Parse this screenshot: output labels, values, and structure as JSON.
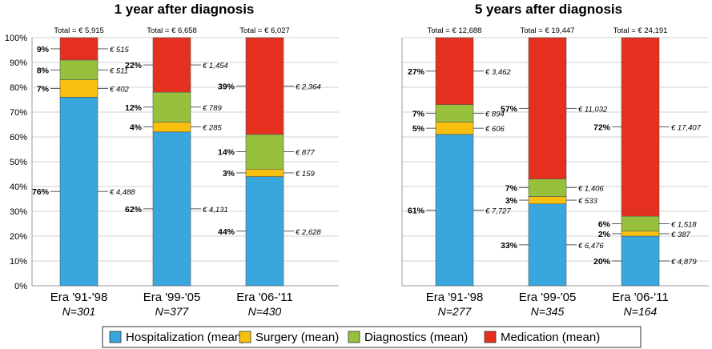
{
  "chart_data": [
    {
      "type": "bar",
      "stacked": true,
      "normalized": true,
      "title": "1 year after diagnosis",
      "categories": [
        "Era '91-'98",
        "Era '99-'05",
        "Era '06-'11"
      ],
      "n_labels": [
        "N=301",
        "N=377",
        "N=430"
      ],
      "totals": [
        "Total = € 5,915",
        "Total = € 6,658",
        "Total = € 6,027"
      ],
      "ylim": [
        0,
        100
      ],
      "yticks": [
        "0%",
        "10%",
        "20%",
        "30%",
        "40%",
        "50%",
        "60%",
        "70%",
        "80%",
        "90%",
        "100%"
      ],
      "grid": true,
      "series": [
        {
          "name": "Hospitalization (mean)",
          "values": [
            76,
            62,
            44
          ],
          "pct_labels": [
            "76%",
            "62%",
            "44%"
          ],
          "euro_labels": [
            "€ 4,488",
            "€ 4,131",
            "€ 2,628"
          ]
        },
        {
          "name": "Surgery (mean)",
          "values": [
            7,
            4,
            3
          ],
          "pct_labels": [
            "7%",
            "4%",
            "3%"
          ],
          "euro_labels": [
            "€ 402",
            "€ 285",
            "€ 159"
          ]
        },
        {
          "name": "Diagnostics (mean)",
          "values": [
            8,
            12,
            14
          ],
          "pct_labels": [
            "8%",
            "12%",
            "14%"
          ],
          "euro_labels": [
            "€ 511",
            "€ 789",
            "€ 877"
          ]
        },
        {
          "name": "Medication (mean)",
          "values": [
            9,
            22,
            39
          ],
          "pct_labels": [
            "9%",
            "22%",
            "39%"
          ],
          "euro_labels": [
            "€ 515",
            "€ 1,454",
            "€ 2,364"
          ]
        }
      ]
    },
    {
      "type": "bar",
      "stacked": true,
      "normalized": true,
      "title": "5 years after diagnosis",
      "categories": [
        "Era '91-'98",
        "Era '99-'05",
        "Era '06-'11"
      ],
      "n_labels": [
        "N=277",
        "N=345",
        "N=164"
      ],
      "totals": [
        "Total = € 12,688",
        "Total = € 19,447",
        "Total = € 24,191"
      ],
      "ylim": [
        0,
        100
      ],
      "grid": true,
      "series": [
        {
          "name": "Hospitalization (mean)",
          "values": [
            61,
            33,
            20
          ],
          "pct_labels": [
            "61%",
            "33%",
            "20%"
          ],
          "euro_labels": [
            "€ 7,727",
            "€ 6,476",
            "€ 4,879"
          ]
        },
        {
          "name": "Surgery (mean)",
          "values": [
            5,
            3,
            2
          ],
          "pct_labels": [
            "5%",
            "3%",
            "2%"
          ],
          "euro_labels": [
            "€ 606",
            "€ 533",
            "€ 387"
          ]
        },
        {
          "name": "Diagnostics (mean)",
          "values": [
            7,
            7,
            6
          ],
          "pct_labels": [
            "7%",
            "7%",
            "6%"
          ],
          "euro_labels": [
            "€ 894",
            "€ 1,406",
            "€ 1,518"
          ]
        },
        {
          "name": "Medication (mean)",
          "values": [
            27,
            57,
            72
          ],
          "pct_labels": [
            "27%",
            "57%",
            "72%"
          ],
          "euro_labels": [
            "€ 3,462",
            "€ 11,032",
            "€ 17,407"
          ]
        }
      ]
    }
  ],
  "legend": {
    "placement": "bottom",
    "items": [
      {
        "label": "Hospitalization (mean)",
        "color": "#3AA6DE"
      },
      {
        "label": "Surgery (mean)",
        "color": "#F9C10F"
      },
      {
        "label": "Diagnostics (mean)",
        "color": "#97C13D"
      },
      {
        "label": "Medication (mean)",
        "color": "#E5301F"
      }
    ]
  },
  "colors": {
    "hospitalization": "#3AA6DE",
    "surgery": "#F9C10F",
    "diagnostics": "#97C13D",
    "medication": "#E5301F",
    "grid": "#D0D0D0",
    "bar_outline": "#555555"
  }
}
